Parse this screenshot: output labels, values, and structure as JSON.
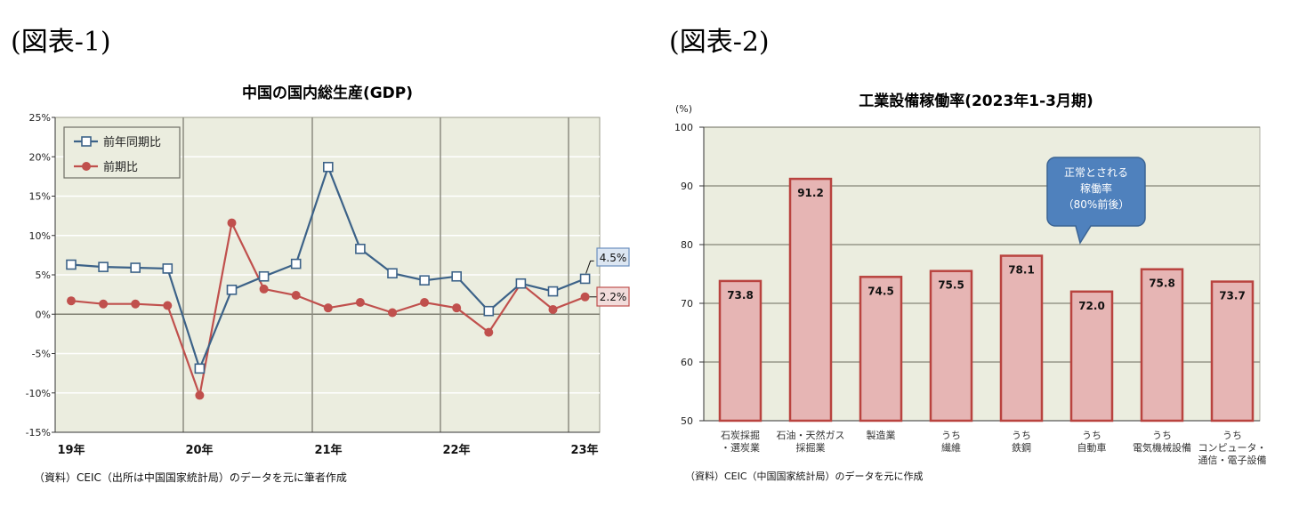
{
  "figure1": {
    "label": "(図表-1)",
    "footnote": "（資料）CEIC（出所は中国国家統計局）のデータを元に筆者作成"
  },
  "figure2": {
    "label": "(図表-2)",
    "footnote": "（資料）CEIC（中国国家統計局）のデータを元に作成",
    "callout": [
      "正常とされる",
      "稼働率",
      "（80%前後）"
    ]
  },
  "colors": {
    "plot_bg": "#ebeddf",
    "yoy_line": "#3c6288",
    "qoq_line": "#c0504d",
    "bar_fill": "#e6b5b4",
    "bar_edge": "#b9433f",
    "callout_fill": "#4f81bd",
    "callout_edge": "#3b6494",
    "yoy_label_bg": "#dce6f2",
    "qoq_label_bg": "#f2dcdb"
  },
  "chart_data": [
    {
      "type": "line",
      "title": "中国の国内総生産(GDP)",
      "xlabel": "",
      "ylabel": "",
      "ylim": [
        -15,
        25
      ],
      "yticks": [
        "25%",
        "20%",
        "15%",
        "10%",
        "5%",
        "0%",
        "-5%",
        "-10%",
        "-15%"
      ],
      "ytick_values": [
        25,
        20,
        15,
        10,
        5,
        0,
        -5,
        -10,
        -15
      ],
      "x": [
        "19Q1",
        "19Q2",
        "19Q3",
        "19Q4",
        "20Q1",
        "20Q2",
        "20Q3",
        "20Q4",
        "21Q1",
        "21Q2",
        "21Q3",
        "21Q4",
        "22Q1",
        "22Q2",
        "22Q3",
        "22Q4",
        "23Q1"
      ],
      "xtick_labels": [
        "19年",
        "20年",
        "21年",
        "22年",
        "23年"
      ],
      "grid": true,
      "legend_position": "upper-left",
      "series": [
        {
          "name": "前年同期比",
          "marker": "square-open",
          "values": [
            6.3,
            6.0,
            5.9,
            5.8,
            -6.9,
            3.1,
            4.8,
            6.4,
            18.7,
            8.3,
            5.2,
            4.3,
            4.8,
            0.4,
            3.9,
            2.9,
            4.5
          ]
        },
        {
          "name": "前期比",
          "marker": "circle-filled",
          "values": [
            1.7,
            1.3,
            1.3,
            1.1,
            -10.3,
            11.6,
            3.2,
            2.4,
            0.8,
            1.5,
            0.2,
            1.5,
            0.8,
            -2.3,
            3.9,
            0.6,
            2.2
          ]
        }
      ],
      "annotations": [
        "4.5%",
        "2.2%"
      ]
    },
    {
      "type": "bar",
      "title": "工業設備稼働率(2023年1-3月期)",
      "ylabel": "(%)",
      "ylim": [
        50,
        100
      ],
      "yticks": [
        "100",
        "90",
        "80",
        "70",
        "60",
        "50"
      ],
      "ytick_values": [
        100,
        90,
        80,
        70,
        60,
        50
      ],
      "grid": true,
      "categories": [
        [
          "石炭採掘",
          "・選炭業"
        ],
        [
          "石油・天然ガス",
          "採掘業"
        ],
        [
          "製造業"
        ],
        [
          "うち",
          "繊維"
        ],
        [
          "うち",
          "鉄鋼"
        ],
        [
          "うち",
          "自動車"
        ],
        [
          "うち",
          "電気機械設備"
        ],
        [
          "うち",
          "コンピュータ・",
          "通信・電子設備"
        ]
      ],
      "values": [
        73.8,
        91.2,
        74.5,
        75.5,
        78.1,
        72.0,
        75.8,
        73.7
      ],
      "value_labels": [
        "73.8",
        "91.2",
        "74.5",
        "75.5",
        "78.1",
        "72.0",
        "75.8",
        "73.7"
      ],
      "annotations": [
        "正常とされる稼働率（80%前後）"
      ]
    }
  ]
}
